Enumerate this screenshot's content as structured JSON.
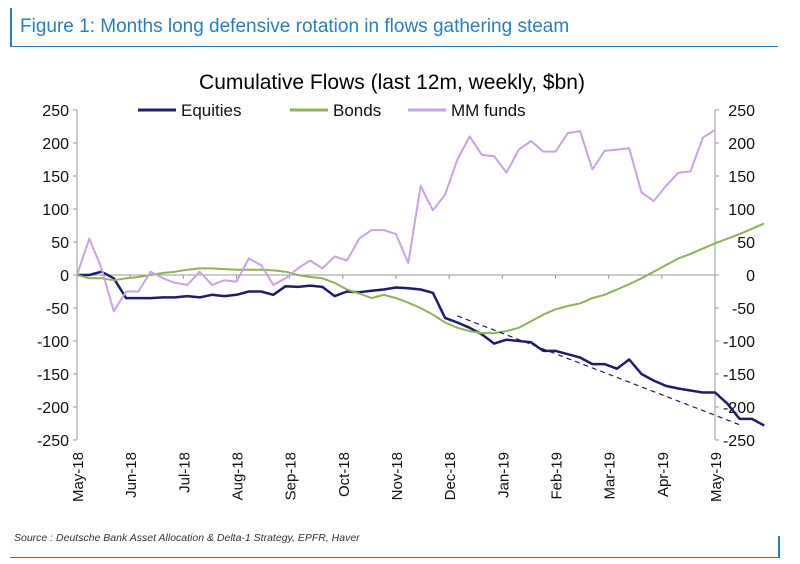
{
  "figure_title": "Figure 1: Months long defensive rotation in flows gathering steam",
  "source": "Source : Deutsche Bank Asset Allocation & Delta-1 Strategy, EPFR, Haver",
  "colors": {
    "frame": "#2a7fb8",
    "equities": "#1b1f6b",
    "bonds": "#8db35a",
    "mm_funds": "#c9a3e8",
    "trend": "#1b1f6b",
    "axis": "#9a9a9a"
  },
  "chart_data": {
    "type": "line",
    "title": "Cumulative Flows (last 12m, weekly, $bn)",
    "xlabel": "",
    "ylabel": "",
    "ylim": [
      -250,
      250
    ],
    "y_ticks": [
      250,
      200,
      150,
      100,
      50,
      0,
      -50,
      -100,
      -150,
      -200,
      -250
    ],
    "y2_ticks": [
      250,
      200,
      150,
      100,
      50,
      0,
      -50,
      -100,
      -150,
      -200,
      -250
    ],
    "x_tick_labels": [
      "May-18",
      "Jun-18",
      "Jul-18",
      "Aug-18",
      "Sep-18",
      "Oct-18",
      "Nov-18",
      "Dec-18",
      "Jan-19",
      "Feb-19",
      "Mar-19",
      "Apr-19",
      "May-19"
    ],
    "x_start": "May-18",
    "x_end": "May-19",
    "week_step_months": 0.2308,
    "grid": false,
    "legend": "top",
    "series": [
      {
        "name": "Equities",
        "color": "#1b1f6b",
        "values": [
          0,
          0,
          5,
          -5,
          -35,
          -35,
          -35,
          -34,
          -34,
          -32,
          -34,
          -30,
          -32,
          -30,
          -25,
          -25,
          -30,
          -17,
          -18,
          -16,
          -18,
          -32,
          -25,
          -26,
          -24,
          -22,
          -19,
          -20,
          -22,
          -27,
          -65,
          -72,
          -80,
          -90,
          -104,
          -98,
          -100,
          -102,
          -115,
          -115,
          -120,
          -125,
          -135,
          -135,
          -142,
          -128,
          -150,
          -160,
          -168,
          -172,
          -175,
          -178,
          -178,
          -195,
          -218,
          -218,
          -228
        ]
      },
      {
        "name": "Bonds",
        "color": "#8db35a",
        "values": [
          0,
          -5,
          -5,
          -8,
          -5,
          -3,
          0,
          3,
          5,
          8,
          10,
          10,
          9,
          8,
          8,
          8,
          7,
          5,
          0,
          -3,
          -5,
          -12,
          -22,
          -28,
          -35,
          -30,
          -35,
          -42,
          -50,
          -60,
          -72,
          -80,
          -85,
          -88,
          -88,
          -85,
          -80,
          -70,
          -60,
          -52,
          -47,
          -43,
          -35,
          -30,
          -22,
          -14,
          -5,
          5,
          15,
          25,
          32,
          40,
          48,
          55,
          62,
          70,
          78
        ]
      },
      {
        "name": "MM funds",
        "color": "#c9a3e8",
        "values": [
          0,
          55,
          10,
          -55,
          -25,
          -25,
          5,
          -5,
          -12,
          -15,
          5,
          -15,
          -8,
          -10,
          25,
          15,
          -15,
          -5,
          10,
          22,
          10,
          28,
          22,
          55,
          68,
          68,
          62,
          18,
          135,
          98,
          122,
          175,
          210,
          182,
          180,
          155,
          190,
          203,
          187,
          187,
          215,
          218,
          160,
          188,
          190,
          192,
          125,
          112,
          135,
          155,
          157,
          208,
          220
        ]
      }
    ],
    "annotations": [
      {
        "type": "dashed-trend",
        "series": "Equities",
        "from_index": 31,
        "from_value": -62,
        "to_value": -228,
        "to_x_months": 12.5
      }
    ]
  }
}
